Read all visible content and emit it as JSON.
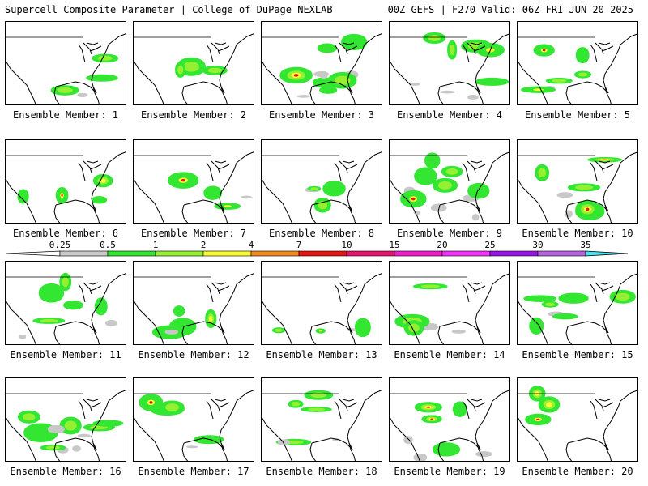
{
  "header": {
    "left_title": "Supercell Composite Parameter | College of DuPage NEXLAB",
    "right_title": "00Z GEFS | F270 Valid: 06Z FRI JUN 20 2025"
  },
  "legend": {
    "labels": [
      "0.25",
      "0.5",
      "1",
      "2",
      "4",
      "7",
      "10",
      "15",
      "20",
      "25",
      "30",
      "35"
    ],
    "colors": [
      "#c8c8c8",
      "#32e632",
      "#96f032",
      "#fafa32",
      "#f08c1e",
      "#e61414",
      "#e6146e",
      "#f01ec8",
      "#f032fa",
      "#9614e6",
      "#b464dc",
      "#46e6f0"
    ]
  },
  "panels": [
    {
      "label": "Ensemble Member: 1"
    },
    {
      "label": "Ensemble Member: 2"
    },
    {
      "label": "Ensemble Member: 3"
    },
    {
      "label": "Ensemble Member: 4"
    },
    {
      "label": "Ensemble Member: 5"
    },
    {
      "label": "Ensemble Member: 6"
    },
    {
      "label": "Ensemble Member: 7"
    },
    {
      "label": "Ensemble Member: 8"
    },
    {
      "label": "Ensemble Member: 9"
    },
    {
      "label": "Ensemble Member: 10"
    },
    {
      "label": "Ensemble Member: 11"
    },
    {
      "label": "Ensemble Member: 12"
    },
    {
      "label": "Ensemble Member: 13"
    },
    {
      "label": "Ensemble Member: 14"
    },
    {
      "label": "Ensemble Member: 15"
    },
    {
      "label": "Ensemble Member: 16"
    },
    {
      "label": "Ensemble Member: 17"
    },
    {
      "label": "Ensemble Member: 18"
    },
    {
      "label": "Ensemble Member: 19"
    },
    {
      "label": "Ensemble Member: 20"
    }
  ]
}
